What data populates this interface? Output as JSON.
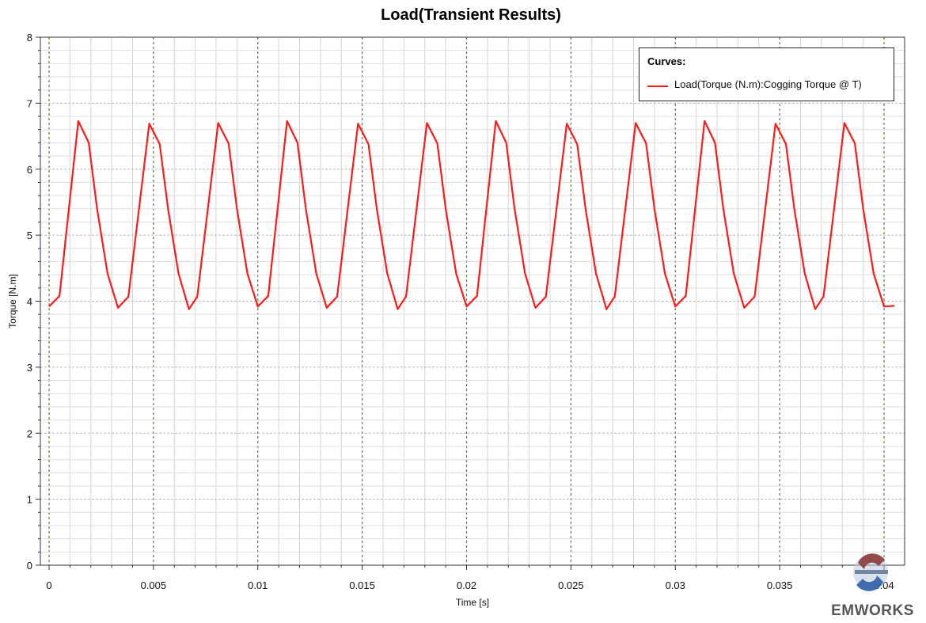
{
  "chart_data": {
    "type": "line",
    "title": "Load(Transient Results)",
    "xlabel": "Time [s]",
    "ylabel": "Torque [N.m]",
    "xlim": [
      0,
      0.0405
    ],
    "ylim": [
      0,
      8
    ],
    "x_ticks": [
      "0",
      "0.005",
      "0.01",
      "0.015",
      "0.02",
      "0.025",
      "0.03",
      "0.035",
      "0.04"
    ],
    "y_ticks": [
      "0",
      "1",
      "2",
      "3",
      "4",
      "5",
      "6",
      "7",
      "8"
    ],
    "grid": true,
    "legend": {
      "title": "Curves:",
      "position": "top-right"
    },
    "series": [
      {
        "name": "Load(Torque (N.m):Cogging Torque @ T)",
        "color": "#ff1a1a",
        "x": [
          0,
          0.0005,
          0.0014,
          0.0019,
          0.0023,
          0.0028,
          0.0033,
          0.0038,
          0.0048,
          0.0053,
          0.0057,
          0.0062,
          0.0067,
          0.0071,
          0.0081,
          0.0086,
          0.009,
          0.0095,
          0.01,
          0.0105,
          0.0114,
          0.0119,
          0.0123,
          0.0128,
          0.0133,
          0.0138,
          0.0148,
          0.0153,
          0.0157,
          0.0162,
          0.0167,
          0.0171,
          0.0181,
          0.0186,
          0.019,
          0.0195,
          0.02,
          0.0205,
          0.0214,
          0.0219,
          0.0223,
          0.0228,
          0.0233,
          0.0238,
          0.0248,
          0.0253,
          0.0257,
          0.0262,
          0.0267,
          0.0271,
          0.0281,
          0.0286,
          0.029,
          0.0295,
          0.03,
          0.0305,
          0.0314,
          0.0319,
          0.0323,
          0.0328,
          0.0333,
          0.0338,
          0.0348,
          0.0353,
          0.0357,
          0.0362,
          0.0367,
          0.0371,
          0.0381,
          0.0386,
          0.039,
          0.0395,
          0.04,
          0.0405
        ],
        "y": [
          3.92,
          4.08,
          6.73,
          6.4,
          5.4,
          4.42,
          3.9,
          4.07,
          6.69,
          6.38,
          5.4,
          4.42,
          3.88,
          4.07,
          6.7,
          6.39,
          5.4,
          4.42,
          3.92,
          4.08,
          6.73,
          6.4,
          5.4,
          4.42,
          3.9,
          4.07,
          6.69,
          6.38,
          5.4,
          4.42,
          3.88,
          4.07,
          6.7,
          6.39,
          5.4,
          4.42,
          3.92,
          4.08,
          6.73,
          6.4,
          5.4,
          4.42,
          3.9,
          4.07,
          6.69,
          6.38,
          5.4,
          4.42,
          3.88,
          4.07,
          6.7,
          6.39,
          5.4,
          4.42,
          3.92,
          4.08,
          6.73,
          6.4,
          5.4,
          4.42,
          3.9,
          4.07,
          6.69,
          6.38,
          5.4,
          4.42,
          3.88,
          4.07,
          6.7,
          6.39,
          5.4,
          4.42,
          3.92,
          3.93
        ]
      }
    ]
  },
  "watermark": {
    "brand": "EMWORKS",
    "colors": [
      "#8a3a3a",
      "#2c5fa8"
    ]
  }
}
